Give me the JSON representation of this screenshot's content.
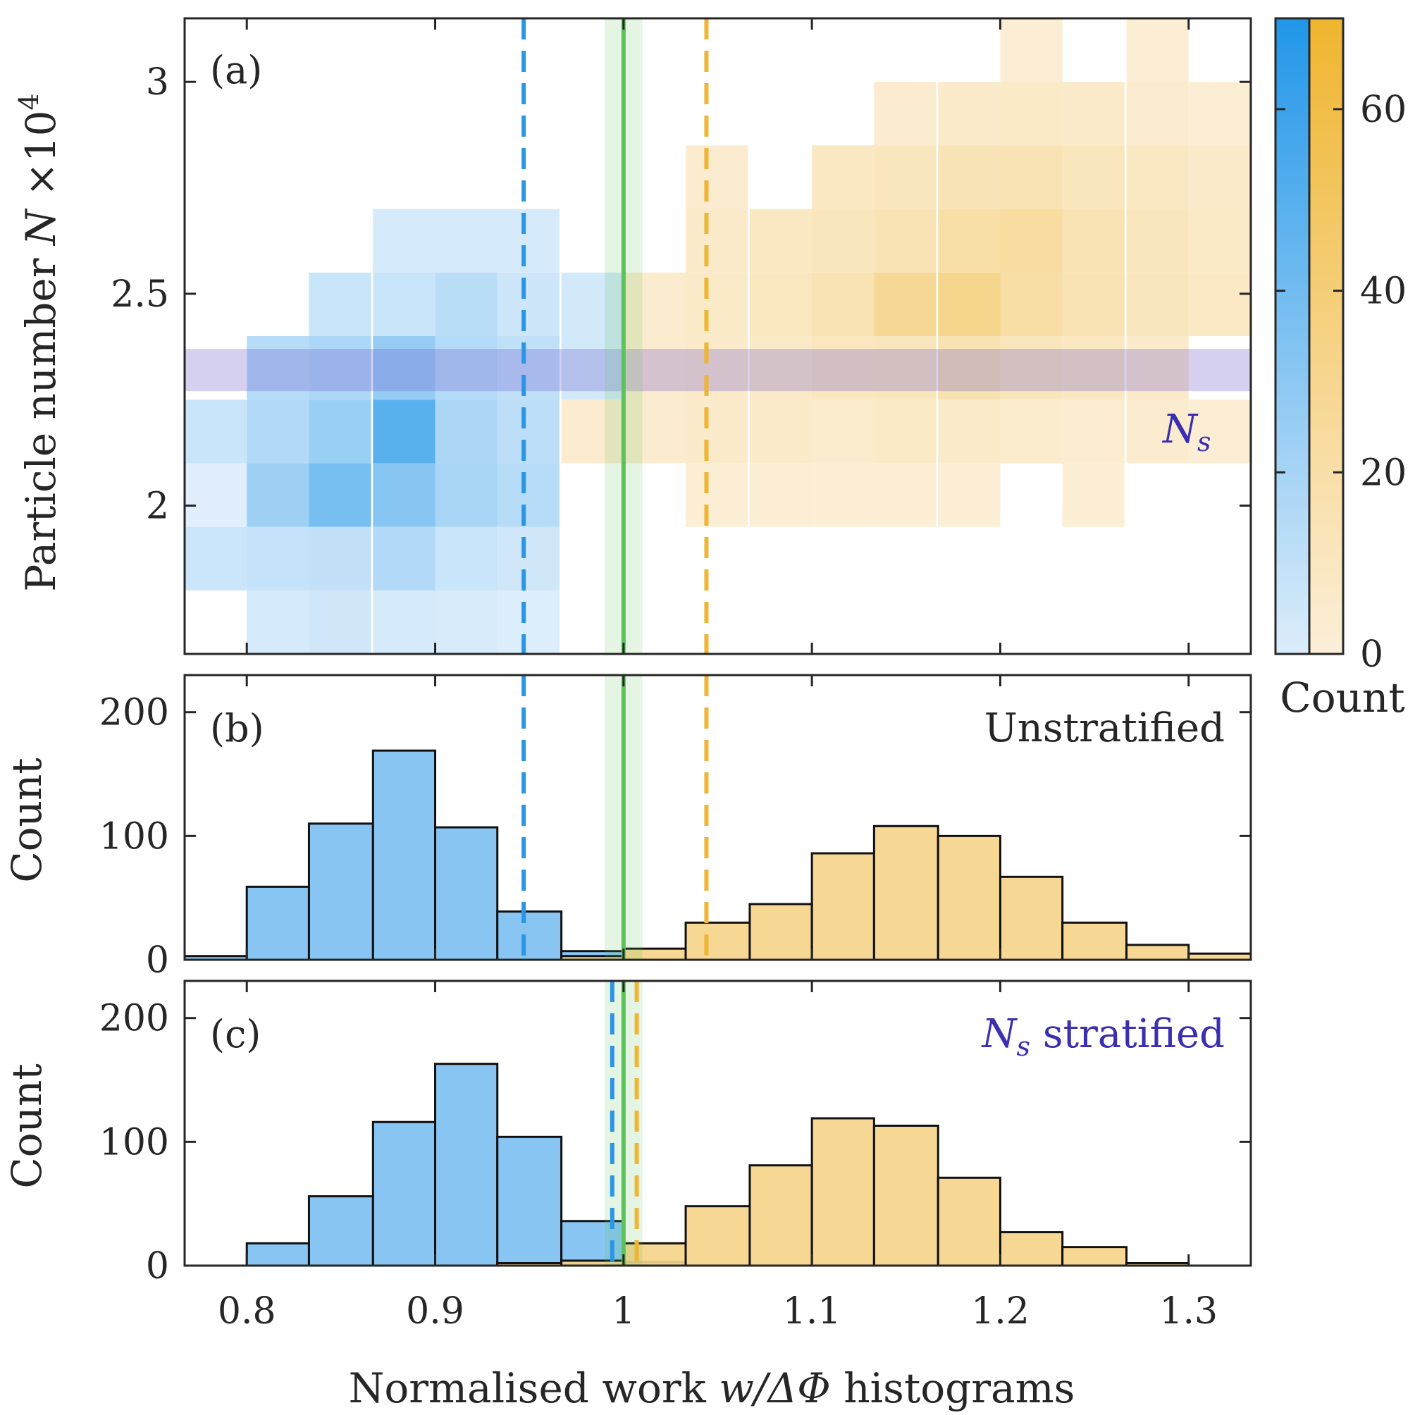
{
  "colors": {
    "blue": "#2b96e6",
    "blue_fill": "#7fc0f2",
    "orange": "#efb534",
    "orange_fill": "#f5d48a",
    "green": "#5cc35a",
    "purple": "#6a5acd",
    "annotation": "#3a2fb0"
  },
  "chart_data": [
    {
      "panel": "(a)",
      "type": "heatmap",
      "xlabel": "",
      "ylabel": "Particle number",
      "ylabel_symbol": "N",
      "ylabel_factor": "×10",
      "ylabel_exponent": "4",
      "xlim": [
        0.767,
        1.333
      ],
      "ylim": [
        1.65,
        3.15
      ],
      "yticks": [
        2,
        2.5,
        3
      ],
      "yticklabels": [
        "2",
        "2.5",
        "3"
      ],
      "xticks": [
        0.8,
        0.9,
        1,
        1.1,
        1.2,
        1.3
      ],
      "x_bin_edges": [
        0.767,
        0.8,
        0.833,
        0.867,
        0.9,
        0.933,
        0.967,
        1.0,
        1.033,
        1.067,
        1.1,
        1.133,
        1.167,
        1.2,
        1.233,
        1.267,
        1.3,
        1.333
      ],
      "y_bin_edges": [
        1.65,
        1.8,
        1.95,
        2.1,
        2.25,
        2.4,
        2.55,
        2.7,
        2.85,
        3.0,
        3.15
      ],
      "series": [
        {
          "name": "blue",
          "cells": [
            [
              0.8,
              1.65,
              5
            ],
            [
              0.833,
              1.65,
              7
            ],
            [
              0.867,
              1.65,
              5
            ],
            [
              0.9,
              1.65,
              4
            ],
            [
              0.933,
              1.65,
              2
            ],
            [
              0.767,
              1.8,
              9
            ],
            [
              0.8,
              1.8,
              12
            ],
            [
              0.833,
              1.8,
              13
            ],
            [
              0.867,
              1.8,
              20
            ],
            [
              0.9,
              1.8,
              10
            ],
            [
              0.933,
              1.8,
              7
            ],
            [
              0.767,
              1.95,
              0
            ],
            [
              0.8,
              1.95,
              28
            ],
            [
              0.833,
              1.95,
              45
            ],
            [
              0.867,
              1.95,
              38
            ],
            [
              0.9,
              1.95,
              24
            ],
            [
              0.933,
              1.95,
              18
            ],
            [
              0.767,
              2.1,
              10
            ],
            [
              0.8,
              2.1,
              20
            ],
            [
              0.833,
              2.1,
              30
            ],
            [
              0.867,
              2.1,
              58
            ],
            [
              0.9,
              2.1,
              23
            ],
            [
              0.933,
              2.1,
              15
            ],
            [
              0.8,
              2.25,
              18
            ],
            [
              0.833,
              2.25,
              22
            ],
            [
              0.867,
              2.25,
              32
            ],
            [
              0.9,
              2.25,
              19
            ],
            [
              0.933,
              2.25,
              14
            ],
            [
              0.967,
              2.25,
              6
            ],
            [
              0.833,
              2.4,
              10
            ],
            [
              0.867,
              2.4,
              10
            ],
            [
              0.9,
              2.4,
              17
            ],
            [
              0.933,
              2.4,
              8
            ],
            [
              0.967,
              2.4,
              6
            ],
            [
              0.867,
              2.55,
              5
            ],
            [
              0.9,
              2.55,
              5
            ],
            [
              0.933,
              2.55,
              5
            ]
          ]
        },
        {
          "name": "orange",
          "cells": [
            [
              1.033,
              1.95,
              5
            ],
            [
              1.067,
              1.95,
              6
            ],
            [
              1.1,
              1.95,
              5
            ],
            [
              1.133,
              1.95,
              5
            ],
            [
              1.167,
              1.95,
              5
            ],
            [
              1.233,
              1.95,
              5
            ],
            [
              0.967,
              2.1,
              8
            ],
            [
              1.0,
              2.1,
              8
            ],
            [
              1.033,
              2.1,
              10
            ],
            [
              1.067,
              2.1,
              10
            ],
            [
              1.1,
              2.1,
              9
            ],
            [
              1.133,
              2.1,
              12
            ],
            [
              1.167,
              2.1,
              10
            ],
            [
              1.2,
              2.1,
              9
            ],
            [
              1.233,
              2.1,
              7
            ],
            [
              1.267,
              2.1,
              8
            ],
            [
              1.3,
              2.1,
              6
            ],
            [
              1.0,
              2.25,
              8
            ],
            [
              1.033,
              2.25,
              10
            ],
            [
              1.067,
              2.25,
              12
            ],
            [
              1.1,
              2.25,
              16
            ],
            [
              1.133,
              2.25,
              18
            ],
            [
              1.167,
              2.25,
              23
            ],
            [
              1.2,
              2.25,
              18
            ],
            [
              1.233,
              2.25,
              14
            ],
            [
              1.267,
              2.25,
              10
            ],
            [
              1.0,
              2.4,
              8
            ],
            [
              1.033,
              2.4,
              12
            ],
            [
              1.067,
              2.4,
              16
            ],
            [
              1.1,
              2.4,
              22
            ],
            [
              1.133,
              2.4,
              38
            ],
            [
              1.167,
              2.4,
              42
            ],
            [
              1.2,
              2.4,
              30
            ],
            [
              1.233,
              2.4,
              22
            ],
            [
              1.267,
              2.4,
              18
            ],
            [
              1.3,
              2.4,
              13
            ],
            [
              1.033,
              2.55,
              10
            ],
            [
              1.067,
              2.55,
              14
            ],
            [
              1.1,
              2.55,
              18
            ],
            [
              1.133,
              2.55,
              22
            ],
            [
              1.167,
              2.55,
              28
            ],
            [
              1.2,
              2.55,
              32
            ],
            [
              1.233,
              2.55,
              22
            ],
            [
              1.267,
              2.55,
              18
            ],
            [
              1.3,
              2.55,
              12
            ],
            [
              1.333,
              2.55,
              0
            ],
            [
              1.033,
              2.7,
              8
            ],
            [
              1.1,
              2.7,
              14
            ],
            [
              1.133,
              2.7,
              18
            ],
            [
              1.167,
              2.7,
              20
            ],
            [
              1.2,
              2.7,
              22
            ],
            [
              1.233,
              2.7,
              18
            ],
            [
              1.267,
              2.7,
              14
            ],
            [
              1.3,
              2.7,
              10
            ],
            [
              1.133,
              2.85,
              8
            ],
            [
              1.167,
              2.85,
              10
            ],
            [
              1.2,
              2.85,
              12
            ],
            [
              1.233,
              2.85,
              10
            ],
            [
              1.267,
              2.85,
              8
            ],
            [
              1.3,
              2.85,
              6
            ],
            [
              1.2,
              3.0,
              6
            ],
            [
              1.267,
              3.0,
              6
            ]
          ]
        }
      ],
      "band": {
        "label": "N",
        "label_sub": "s",
        "y_range": [
          2.27,
          2.37
        ]
      },
      "colorbar": {
        "label": "Count",
        "ticks": [
          0,
          20,
          40,
          60
        ],
        "tick_labels": [
          "0",
          "20",
          "40",
          "60"
        ],
        "range": [
          0,
          70
        ]
      }
    },
    {
      "panel": "(b)",
      "type": "bar",
      "title": "Unstratified",
      "ylabel": "Count",
      "ylim": [
        0,
        230
      ],
      "yticks": [
        0,
        100,
        200
      ],
      "yticklabels": [
        "0",
        "100",
        "200"
      ],
      "bin_edges": [
        0.767,
        0.8,
        0.833,
        0.867,
        0.9,
        0.933,
        0.967,
        1.0,
        1.033,
        1.067,
        1.1,
        1.133,
        1.167,
        1.2,
        1.233,
        1.267,
        1.3,
        1.333
      ],
      "series": [
        {
          "name": "blue",
          "values": [
            3,
            59,
            110,
            169,
            107,
            39,
            7,
            0,
            0,
            0,
            0,
            0,
            0,
            0,
            0,
            0,
            0
          ]
        },
        {
          "name": "orange",
          "values": [
            0,
            0,
            0,
            0,
            0,
            0,
            3,
            9,
            30,
            45,
            86,
            108,
            100,
            67,
            30,
            12,
            5
          ]
        }
      ]
    },
    {
      "panel": "(c)",
      "type": "bar",
      "title_symbol": "N",
      "title_sub": "s",
      "title_rest": "stratified",
      "ylabel": "Count",
      "ylim": [
        0,
        230
      ],
      "yticks": [
        0,
        100,
        200
      ],
      "yticklabels": [
        "0",
        "100",
        "200"
      ],
      "xlabel_prefix": "Normalised work",
      "xlabel_math": "w/ΔΦ",
      "xlabel_suffix": "histograms",
      "xticks": [
        0.8,
        0.9,
        1,
        1.1,
        1.2,
        1.3
      ],
      "xticklabels": [
        "0.8",
        "0.9",
        "1",
        "1.1",
        "1.2",
        "1.3"
      ],
      "bin_edges": [
        0.767,
        0.8,
        0.833,
        0.867,
        0.9,
        0.933,
        0.967,
        1.0,
        1.033,
        1.067,
        1.1,
        1.133,
        1.167,
        1.2,
        1.233,
        1.267,
        1.3,
        1.333
      ],
      "series": [
        {
          "name": "blue",
          "values": [
            0,
            18,
            56,
            116,
            163,
            104,
            36,
            3,
            0,
            0,
            0,
            0,
            0,
            0,
            0,
            0,
            0
          ]
        },
        {
          "name": "orange",
          "values": [
            0,
            0,
            0,
            0,
            0,
            2,
            4,
            18,
            48,
            81,
            119,
            113,
            71,
            27,
            15,
            2,
            0
          ]
        }
      ]
    }
  ],
  "reference_lines": {
    "green_center": 1.0,
    "green_band": [
      0.99,
      1.01
    ],
    "panel_ab": {
      "blue_dashed": 0.947,
      "orange_dashed": 1.044
    },
    "panel_c": {
      "blue_dashed": 0.994,
      "orange_dashed": 1.007
    }
  }
}
